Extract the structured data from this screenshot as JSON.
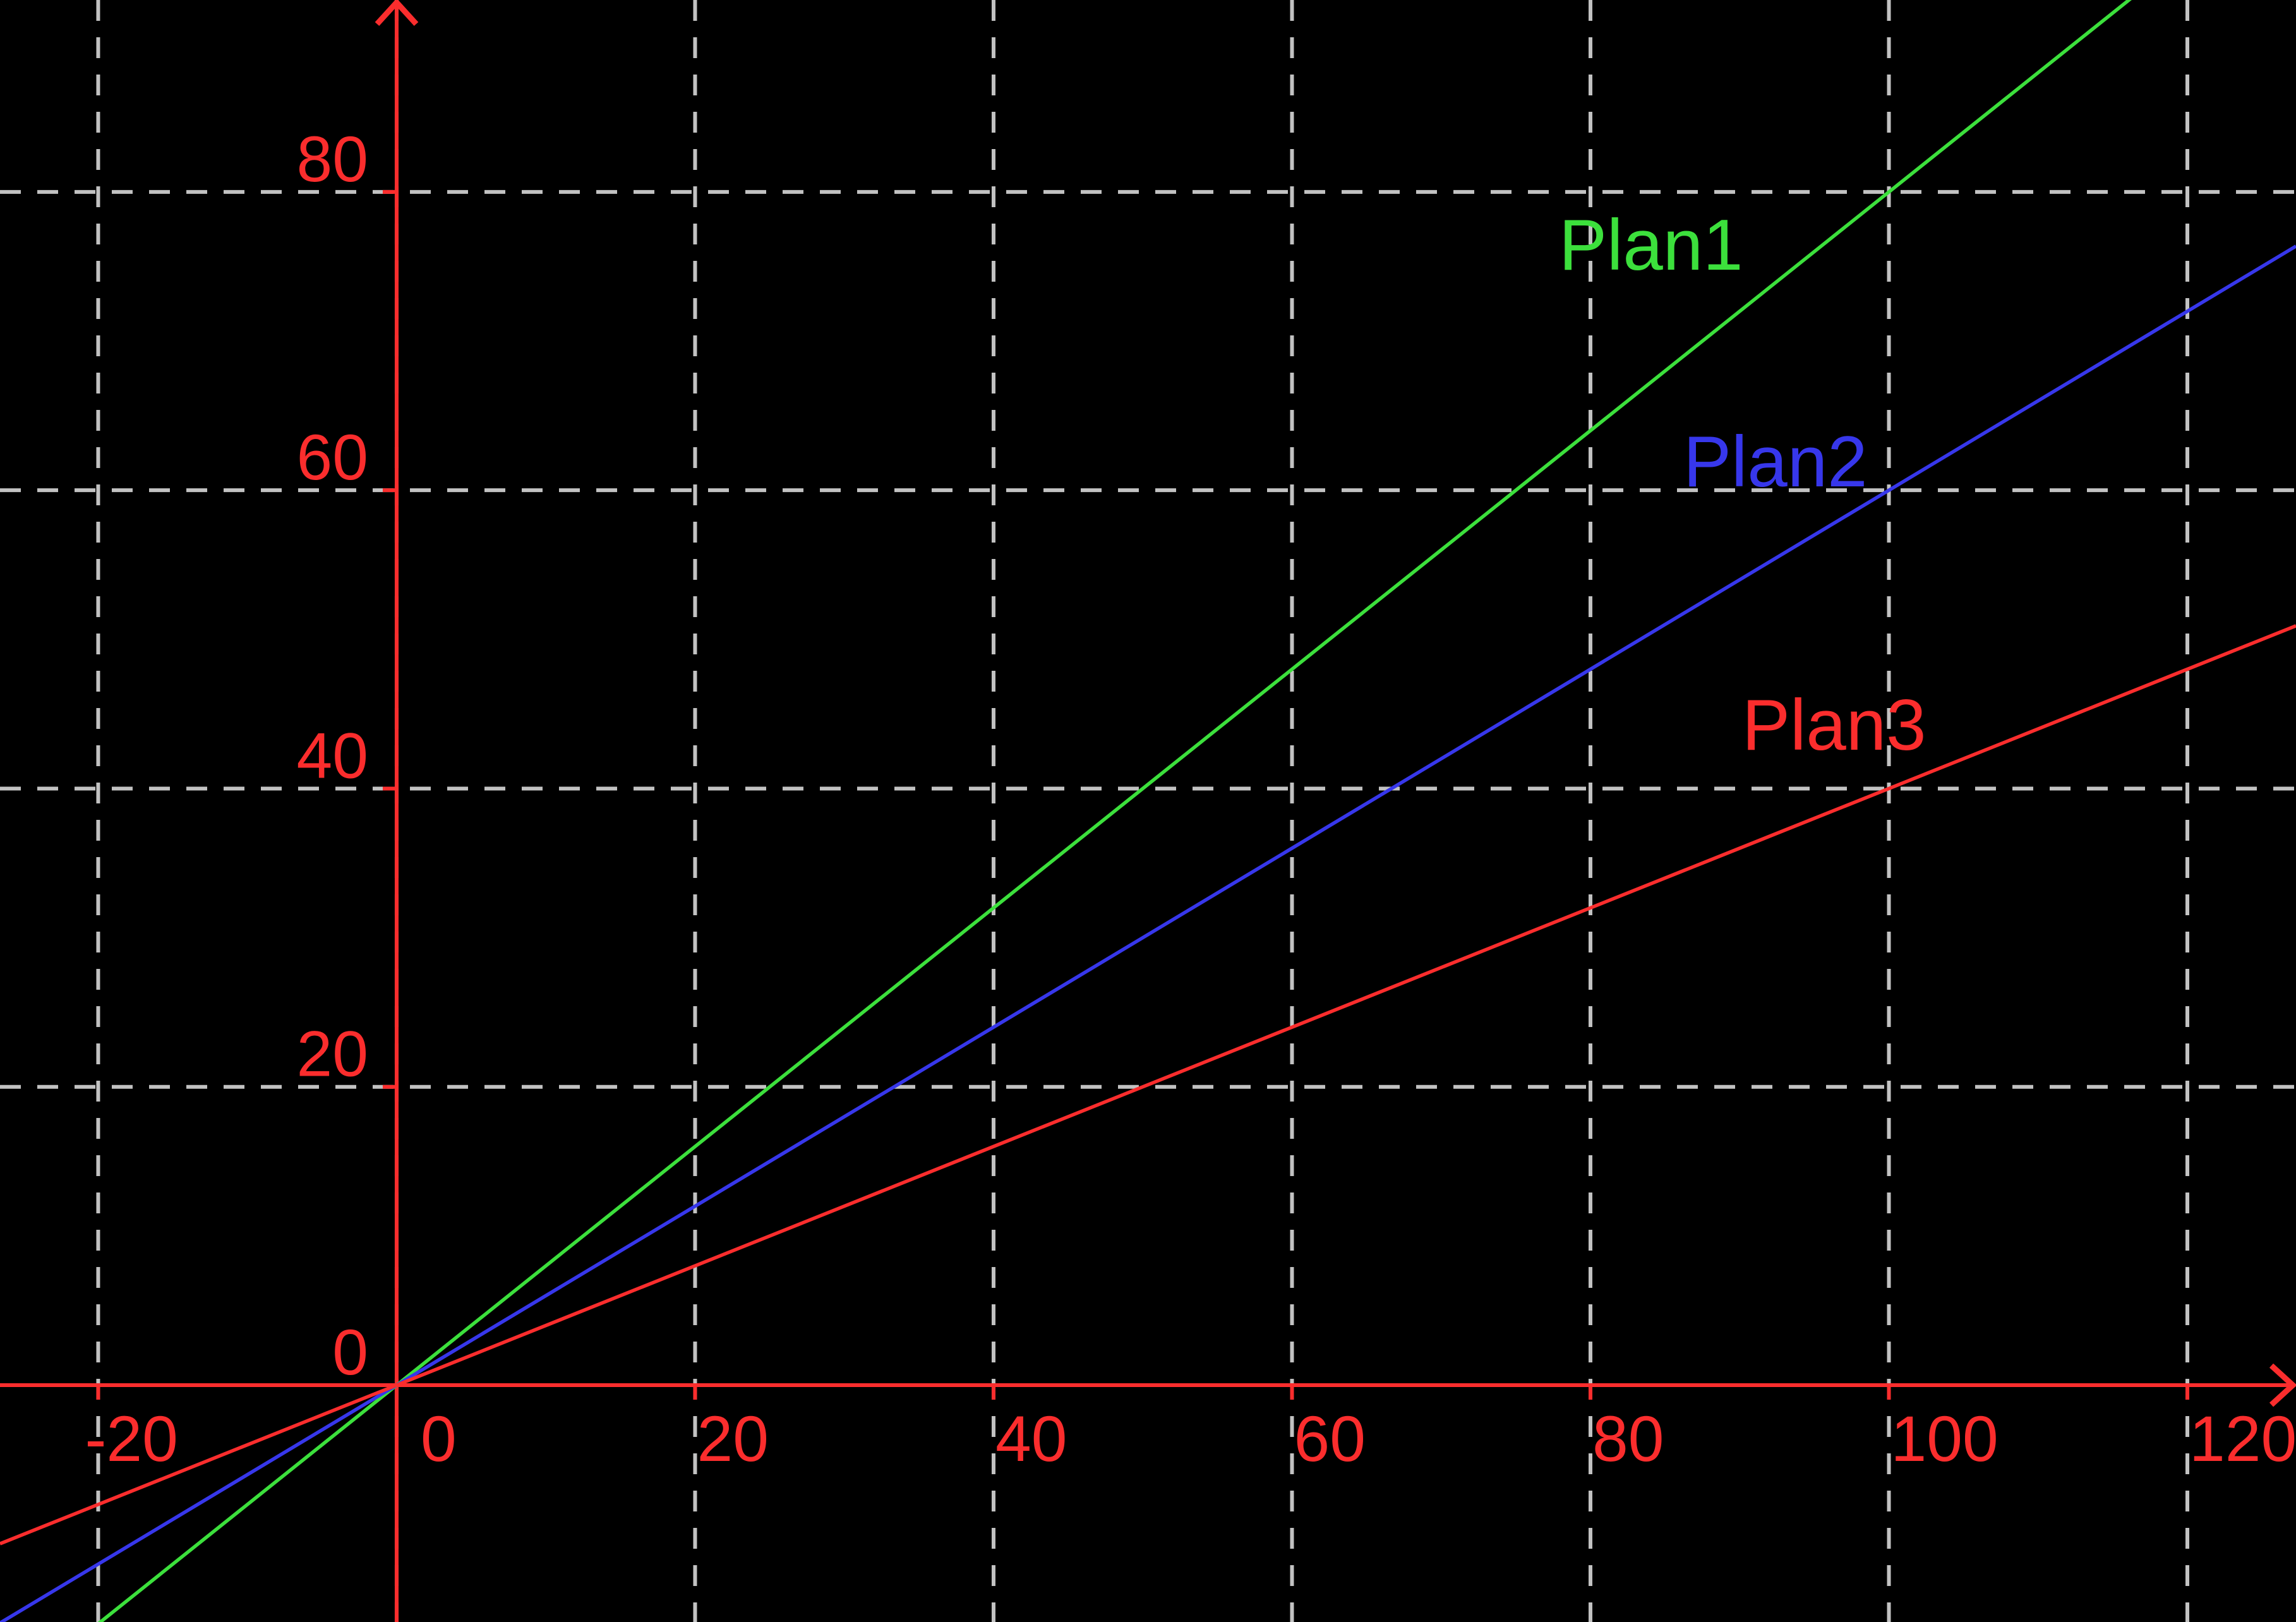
{
  "chart_data": {
    "type": "line",
    "title": "",
    "xlabel": "",
    "ylabel": "",
    "xlim": [
      -26.58,
      127.28
    ],
    "ylim": [
      -15.88,
      92.87
    ],
    "x_ticks": [
      -20,
      0,
      20,
      40,
      60,
      80,
      100,
      120
    ],
    "y_ticks": [
      0,
      20,
      40,
      60,
      80
    ],
    "x_tick_labels": [
      "-20",
      "0",
      "20",
      "40",
      "60",
      "80",
      "100",
      "120"
    ],
    "y_tick_labels": [
      "0",
      "20",
      "40",
      "60",
      "80"
    ],
    "grid": true,
    "grid_style": "dashed",
    "legend_position": "inline-labels",
    "series": [
      {
        "name": "Plan1",
        "equation": "y = 0.8x",
        "slope": 0.8,
        "intercept": 0,
        "color": "#3ce03c",
        "x": [
          -20,
          0,
          20,
          40,
          60,
          80,
          100,
          120
        ],
        "values": [
          -16,
          0,
          16,
          32,
          48,
          64,
          80,
          96
        ],
        "label": {
          "text": "Plan1",
          "x": 2468,
          "y": 427
        }
      },
      {
        "name": "Plan2",
        "equation": "y = 0.6x",
        "slope": 0.6,
        "intercept": 0,
        "color": "#3737eb",
        "x": [
          -20,
          0,
          20,
          40,
          60,
          80,
          100,
          120
        ],
        "values": [
          -12,
          0,
          12,
          24,
          36,
          48,
          60,
          72
        ],
        "label": {
          "text": "Plan2",
          "x": 2665,
          "y": 770
        }
      },
      {
        "name": "Plan3",
        "equation": "y = 0.4x",
        "slope": 0.4,
        "intercept": 0,
        "color": "#fb2d2d",
        "x": [
          -20,
          0,
          20,
          40,
          60,
          80,
          100,
          120
        ],
        "values": [
          -8,
          0,
          8,
          16,
          24,
          32,
          40,
          48
        ],
        "label": {
          "text": "Plan3",
          "x": 2758,
          "y": 1187
        }
      }
    ],
    "colors": {
      "background": "#000000",
      "axis": "#fb2d2d",
      "tick_label": "#fb2d2d",
      "grid": "#c2c2c2"
    }
  }
}
